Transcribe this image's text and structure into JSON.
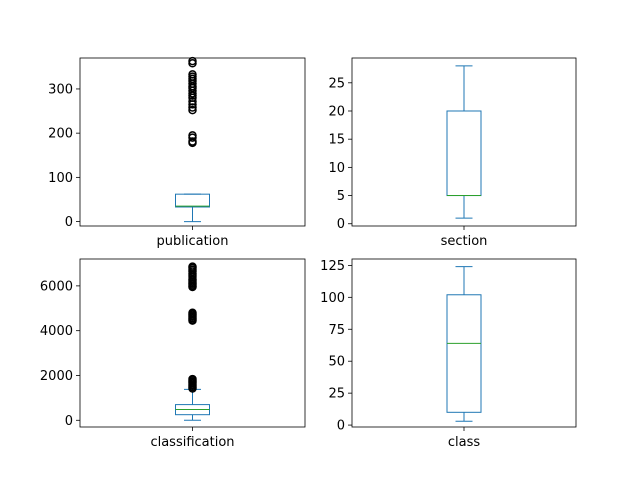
{
  "chart_data": [
    {
      "type": "box",
      "category": "publication",
      "ylim": [
        -10,
        370
      ],
      "yticks": [
        0,
        100,
        200,
        300
      ],
      "stats": {
        "whislo": 0,
        "q1": 33,
        "med": 35,
        "q3": 62,
        "whishi": 62
      },
      "fliers": [
        178,
        181,
        190,
        195,
        252,
        258,
        265,
        272,
        280,
        285,
        290,
        296,
        302,
        306,
        312,
        318,
        323,
        328,
        333,
        358,
        363
      ],
      "colors": {
        "box": "#1f77b4",
        "median": "#2ca02c",
        "flier": "#000000"
      }
    },
    {
      "type": "box",
      "category": "section",
      "ylim": [
        -0.4,
        29.4
      ],
      "yticks": [
        0,
        5,
        10,
        15,
        20,
        25
      ],
      "stats": {
        "whislo": 1,
        "q1": 5,
        "med": 5,
        "q3": 20,
        "whishi": 28
      },
      "fliers": [],
      "colors": {
        "box": "#1f77b4",
        "median": "#2ca02c",
        "flier": "#000000"
      }
    },
    {
      "type": "box",
      "category": "classification",
      "ylim": [
        -300,
        7200
      ],
      "yticks": [
        0,
        2000,
        4000,
        6000
      ],
      "stats": {
        "whislo": 0,
        "q1": 250,
        "med": 480,
        "q3": 700,
        "whishi": 1380
      },
      "fliers": [
        1420,
        1480,
        1540,
        1600,
        1660,
        1720,
        1780,
        1840,
        4450,
        4500,
        4560,
        4620,
        4680,
        4740,
        4800,
        5950,
        6000,
        6060,
        6120,
        6180,
        6240,
        6300,
        6400,
        6480,
        6560,
        6640,
        6720,
        6800,
        6860
      ],
      "colors": {
        "box": "#1f77b4",
        "median": "#2ca02c",
        "flier": "#000000"
      }
    },
    {
      "type": "box",
      "category": "class",
      "ylim": [
        -1.5,
        130
      ],
      "yticks": [
        0,
        25,
        50,
        75,
        100,
        125
      ],
      "stats": {
        "whislo": 3,
        "q1": 10,
        "med": 64,
        "q3": 102,
        "whishi": 124
      },
      "fliers": [],
      "colors": {
        "box": "#1f77b4",
        "median": "#2ca02c",
        "flier": "#000000"
      }
    }
  ]
}
